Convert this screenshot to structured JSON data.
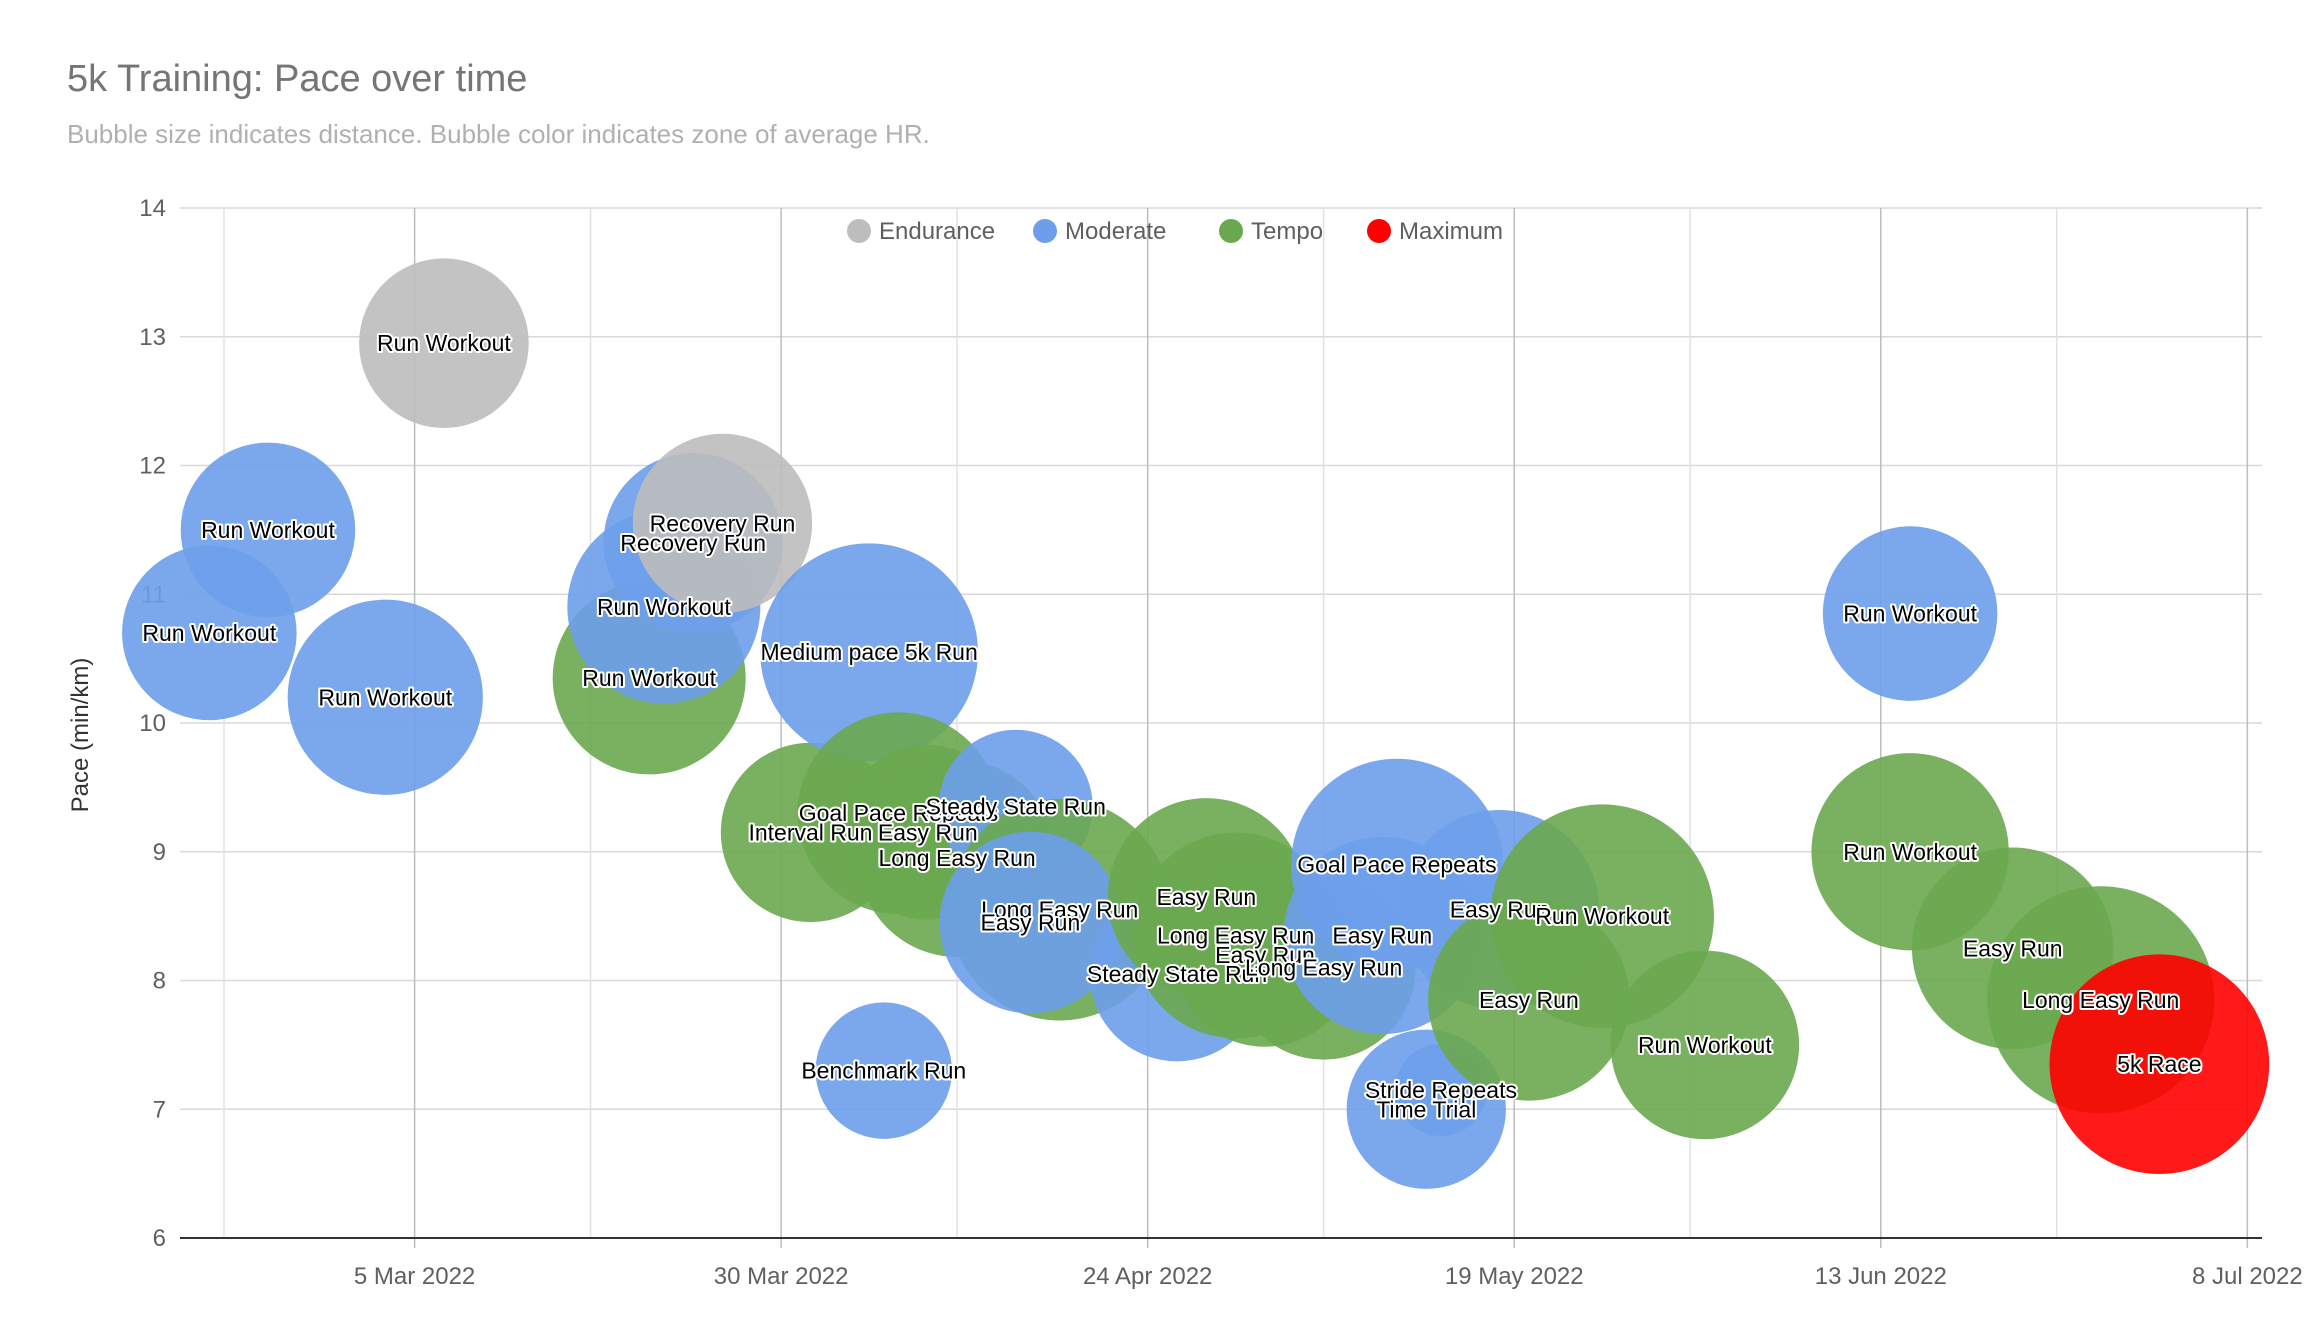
{
  "chart_data": {
    "type": "bubble",
    "title": "5k Training: Pace over time",
    "subtitle": "Bubble size indicates distance. Bubble color indicates zone of average HR.",
    "ylabel": "Pace (min/km)",
    "xlabel": "",
    "ylim": [
      6,
      14
    ],
    "yticks": [
      6,
      7,
      8,
      9,
      10,
      11,
      12,
      13,
      14
    ],
    "xlim": [
      "2022-02-17",
      "2022-07-09"
    ],
    "xticks": [
      "2022-03-05",
      "2022-03-30",
      "2022-04-24",
      "2022-05-19",
      "2022-06-13",
      "2022-07-08"
    ],
    "xtick_labels": [
      "5 Mar 2022",
      "30 Mar 2022",
      "24 Apr 2022",
      "19 May 2022",
      "13 Jun 2022",
      "8 Jul 2022"
    ],
    "grid": true,
    "legend_position": "top",
    "zone_colors": {
      "Endurance": "#bdbdbd",
      "Moderate": "#6d9eeb",
      "Tempo": "#6aa84f",
      "Maximum": "#ff0000"
    },
    "legend": [
      {
        "label": "Endurance",
        "zone": "Endurance"
      },
      {
        "label": "Moderate",
        "zone": "Moderate"
      },
      {
        "label": "Tempo",
        "zone": "Tempo"
      },
      {
        "label": "Maximum",
        "zone": "Maximum"
      }
    ],
    "points": [
      {
        "date": "2022-02-19",
        "pace": 10.7,
        "size": 3.6,
        "zone": "Moderate",
        "label": "Run Workout"
      },
      {
        "date": "2022-02-23",
        "pace": 11.5,
        "size": 3.6,
        "zone": "Moderate",
        "label": "Run Workout"
      },
      {
        "date": "2022-03-03",
        "pace": 10.2,
        "size": 4.5,
        "zone": "Moderate",
        "label": "Run Workout"
      },
      {
        "date": "2022-03-07",
        "pace": 12.95,
        "size": 3.4,
        "zone": "Endurance",
        "label": "Run Workout"
      },
      {
        "date": "2022-03-21",
        "pace": 10.35,
        "size": 4.4,
        "zone": "Tempo",
        "label": "Run Workout"
      },
      {
        "date": "2022-03-22",
        "pace": 10.9,
        "size": 4.4,
        "zone": "Moderate",
        "label": "Run Workout"
      },
      {
        "date": "2022-03-24",
        "pace": 11.4,
        "size": 3.8,
        "zone": "Moderate",
        "label": "Recovery Run"
      },
      {
        "date": "2022-03-26",
        "pace": 11.55,
        "size": 3.8,
        "zone": "Endurance",
        "label": "Recovery Run"
      },
      {
        "date": "2022-04-01",
        "pace": 9.15,
        "size": 3.8,
        "zone": "Tempo",
        "label": "Interval Run"
      },
      {
        "date": "2022-04-05",
        "pace": 10.55,
        "size": 5.6,
        "zone": "Moderate",
        "label": "Medium pace 5k Run"
      },
      {
        "date": "2022-04-06",
        "pace": 7.3,
        "size": 2.2,
        "zone": "Moderate",
        "label": "Benchmark Run"
      },
      {
        "date": "2022-04-07",
        "pace": 9.3,
        "size": 4.8,
        "zone": "Tempo",
        "label": "Goal Pace Repeats"
      },
      {
        "date": "2022-04-09",
        "pace": 9.15,
        "size": 3.6,
        "zone": "Tempo",
        "label": "Easy Run"
      },
      {
        "date": "2022-04-11",
        "pace": 8.95,
        "size": 4.6,
        "zone": "Tempo",
        "label": "Long Easy Run"
      },
      {
        "date": "2022-04-15",
        "pace": 9.35,
        "size": 2.8,
        "zone": "Moderate",
        "label": "Steady State Run"
      },
      {
        "date": "2022-04-18",
        "pace": 8.55,
        "size": 5.8,
        "zone": "Tempo",
        "label": "Long Easy Run"
      },
      {
        "date": "2022-04-16",
        "pace": 8.45,
        "size": 3.9,
        "zone": "Moderate",
        "label": "Easy Run"
      },
      {
        "date": "2022-04-26",
        "pace": 8.05,
        "size": 3.6,
        "zone": "Moderate",
        "label": "Steady State Run"
      },
      {
        "date": "2022-04-28",
        "pace": 8.65,
        "size": 4.6,
        "zone": "Tempo",
        "label": "Easy Run"
      },
      {
        "date": "2022-04-30",
        "pace": 8.35,
        "size": 5.0,
        "zone": "Tempo",
        "label": "Long Easy Run"
      },
      {
        "date": "2022-05-02",
        "pace": 8.2,
        "size": 4.0,
        "zone": "Tempo",
        "label": "Easy Run"
      },
      {
        "date": "2022-05-06",
        "pace": 8.1,
        "size": 4.0,
        "zone": "Tempo",
        "label": "Long Easy Run"
      },
      {
        "date": "2022-05-10",
        "pace": 8.35,
        "size": 4.6,
        "zone": "Moderate",
        "label": "Easy Run"
      },
      {
        "date": "2022-05-11",
        "pace": 8.9,
        "size": 5.3,
        "zone": "Moderate",
        "label": "Goal Pace Repeats"
      },
      {
        "date": "2022-05-13",
        "pace": 7.0,
        "size": 3.0,
        "zone": "Moderate",
        "label": "Time Trial"
      },
      {
        "date": "2022-05-14",
        "pace": 7.15,
        "size": 1.0,
        "zone": "Moderate",
        "label": "Stride Repeats"
      },
      {
        "date": "2022-05-18",
        "pace": 8.55,
        "size": 4.7,
        "zone": "Moderate",
        "label": "Easy Run"
      },
      {
        "date": "2022-05-20",
        "pace": 7.85,
        "size": 4.8,
        "zone": "Tempo",
        "label": "Easy Run"
      },
      {
        "date": "2022-05-25",
        "pace": 8.5,
        "size": 5.9,
        "zone": "Tempo",
        "label": "Run Workout"
      },
      {
        "date": "2022-06-01",
        "pace": 7.5,
        "size": 4.2,
        "zone": "Tempo",
        "label": "Run Workout"
      },
      {
        "date": "2022-06-15",
        "pace": 10.85,
        "size": 3.6,
        "zone": "Moderate",
        "label": "Run Workout"
      },
      {
        "date": "2022-06-15",
        "pace": 9.0,
        "size": 4.6,
        "zone": "Tempo",
        "label": "Run Workout"
      },
      {
        "date": "2022-06-22",
        "pace": 8.25,
        "size": 4.8,
        "zone": "Tempo",
        "label": "Easy Run"
      },
      {
        "date": "2022-06-28",
        "pace": 7.85,
        "size": 6.1,
        "zone": "Tempo",
        "label": "Long Easy Run"
      },
      {
        "date": "2022-07-02",
        "pace": 7.35,
        "size": 5.7,
        "zone": "Maximum",
        "label": "5k Race"
      }
    ]
  }
}
